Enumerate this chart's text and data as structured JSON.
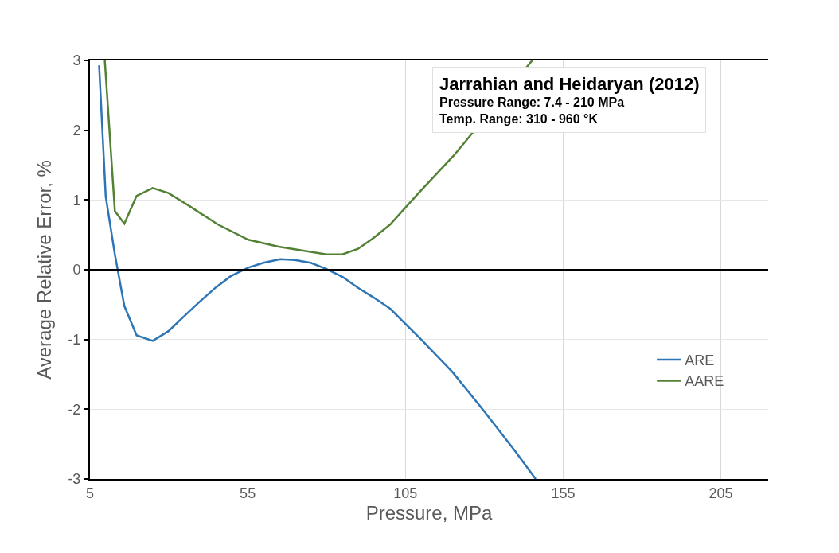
{
  "chart_data": {
    "type": "line",
    "xlabel": "Pressure, MPa",
    "ylabel": "Average Relative Error, %",
    "xlim": [
      5,
      220
    ],
    "xticks": [
      5,
      55,
      105,
      155,
      205
    ],
    "ylim": [
      -3,
      3
    ],
    "yticks": [
      -3,
      -2,
      -1,
      0,
      1,
      2,
      3
    ],
    "grid": true,
    "legend": "bottom right",
    "marker": "none",
    "line_style": "solid",
    "ref_lines": [
      {
        "axis": "y",
        "value": 0,
        "color": "#000000"
      }
    ],
    "annotations": [
      "Jarrahian and Heidaryan (2012)",
      "Pressure Range: 7.4 - 210 MPa",
      "Temp. Range: 310 - 960 °K"
    ],
    "series": [
      {
        "name": "ARE",
        "color": "#2e75b6",
        "x": [
          7.9,
          10,
          12.9,
          15.9,
          19.8,
          24.9,
          29.9,
          35,
          40,
          45,
          49.7,
          55.2,
          60,
          65.3,
          69.9,
          75,
          80,
          85,
          90,
          95,
          100.2,
          110,
          120,
          130,
          139.8,
          146.3
        ],
        "values": [
          2.93,
          1.05,
          0.22,
          -0.52,
          -0.94,
          -1.02,
          -0.88,
          -0.66,
          -0.45,
          -0.25,
          -0.09,
          0.03,
          0.1,
          0.15,
          0.14,
          0.1,
          0.01,
          -0.1,
          -0.26,
          -0.4,
          -0.56,
          -1.0,
          -1.47,
          -2.03,
          -2.6,
          -3.0
        ]
      },
      {
        "name": "AARE",
        "color": "#548235",
        "x": [
          9.7,
          12.9,
          15.9,
          19.8,
          24.9,
          29.9,
          37,
          45.5,
          55.2,
          64.8,
          80,
          85,
          90,
          95,
          100.2,
          110,
          120.4,
          145.2
        ],
        "values": [
          3.0,
          0.84,
          0.66,
          1.06,
          1.17,
          1.1,
          0.9,
          0.65,
          0.43,
          0.33,
          0.22,
          0.22,
          0.3,
          0.46,
          0.65,
          1.14,
          1.64,
          3.0
        ]
      }
    ]
  }
}
